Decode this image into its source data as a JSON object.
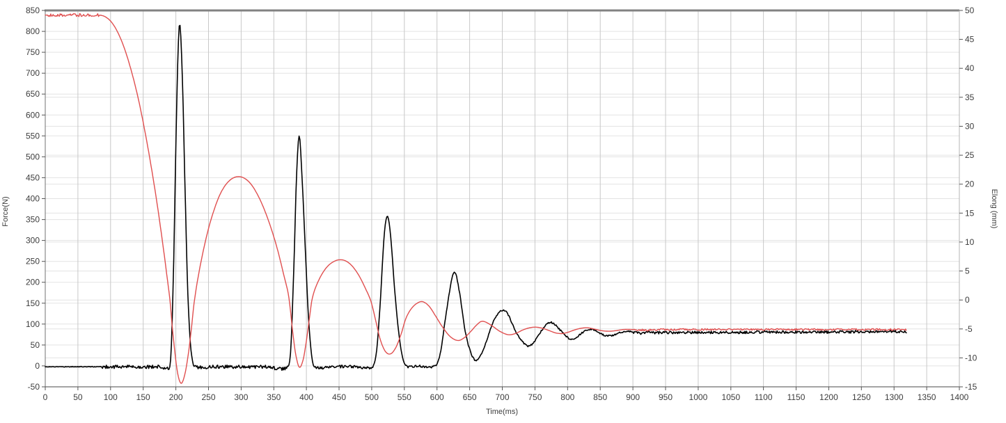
{
  "chart_data": {
    "type": "line",
    "title": "",
    "xlabel": "Time(ms)",
    "ylabel_left": "Force(N)",
    "ylabel_right": "Elong (mm)",
    "x_range": [
      0,
      1400
    ],
    "x_ticks": [
      0,
      50,
      100,
      150,
      200,
      250,
      300,
      350,
      400,
      450,
      500,
      550,
      600,
      650,
      700,
      750,
      800,
      850,
      900,
      950,
      1000,
      1050,
      1100,
      1150,
      1200,
      1250,
      1300,
      1350,
      1400
    ],
    "y_left_range": [
      -50,
      850
    ],
    "y_left_ticks": [
      -50,
      0,
      50,
      100,
      150,
      200,
      250,
      300,
      350,
      400,
      450,
      500,
      550,
      600,
      650,
      700,
      750,
      800,
      850
    ],
    "y_right_range": [
      -15,
      50
    ],
    "y_right_ticks": [
      -15,
      -10,
      -5,
      0,
      5,
      10,
      15,
      20,
      25,
      30,
      35,
      40,
      45,
      50
    ],
    "grid": true,
    "legend": "none",
    "colors": {
      "background": "#ffffff",
      "grid_h": "#e3e3e3",
      "grid_v": "#c8c8c8",
      "border_top": "#828282",
      "border_left": "#707070",
      "border_right": "#b5b5b5",
      "axis_line": "#4a4a4a",
      "tick": "#555555",
      "text": "#3c3c3c"
    },
    "series": [
      {
        "name": "Force",
        "axis": "left",
        "color": "#000000",
        "line_width": 1.6,
        "points": [
          [
            0,
            -2
          ],
          [
            40,
            -2
          ],
          [
            88,
            -2
          ],
          [
            130,
            -2
          ],
          [
            170,
            -2
          ],
          [
            186,
            -2
          ],
          [
            192,
            15
          ],
          [
            196,
            200
          ],
          [
            200,
            520
          ],
          [
            203,
            730
          ],
          [
            206,
            818
          ],
          [
            210,
            690
          ],
          [
            214,
            430
          ],
          [
            218,
            190
          ],
          [
            222,
            60
          ],
          [
            226,
            8
          ],
          [
            229,
            -2
          ],
          [
            260,
            -2
          ],
          [
            300,
            -2
          ],
          [
            340,
            -2
          ],
          [
            371,
            -2
          ],
          [
            376,
            40
          ],
          [
            381,
            250
          ],
          [
            385,
            460
          ],
          [
            389,
            550
          ],
          [
            393,
            460
          ],
          [
            398,
            290
          ],
          [
            403,
            120
          ],
          [
            408,
            25
          ],
          [
            412,
            -2
          ],
          [
            440,
            -2
          ],
          [
            470,
            -2
          ],
          [
            500,
            -2
          ],
          [
            507,
            30
          ],
          [
            513,
            150
          ],
          [
            519,
            310
          ],
          [
            524,
            358
          ],
          [
            529,
            310
          ],
          [
            535,
            185
          ],
          [
            541,
            85
          ],
          [
            547,
            22
          ],
          [
            553,
            0
          ],
          [
            570,
            0
          ],
          [
            597,
            0
          ],
          [
            605,
            30
          ],
          [
            614,
            125
          ],
          [
            623,
            210
          ],
          [
            628,
            223
          ],
          [
            635,
            170
          ],
          [
            643,
            85
          ],
          [
            651,
            35
          ],
          [
            659,
            13
          ],
          [
            667,
            25
          ],
          [
            676,
            60
          ],
          [
            686,
            105
          ],
          [
            695,
            128
          ],
          [
            701,
            133
          ],
          [
            708,
            125
          ],
          [
            716,
            98
          ],
          [
            724,
            72
          ],
          [
            732,
            56
          ],
          [
            738,
            48
          ],
          [
            744,
            50
          ],
          [
            751,
            62
          ],
          [
            759,
            82
          ],
          [
            767,
            98
          ],
          [
            774,
            104
          ],
          [
            781,
            98
          ],
          [
            789,
            85
          ],
          [
            797,
            72
          ],
          [
            803,
            64
          ],
          [
            806,
            63
          ],
          [
            812,
            66
          ],
          [
            819,
            75
          ],
          [
            827,
            84
          ],
          [
            836,
            88
          ],
          [
            843,
            84
          ],
          [
            850,
            78
          ],
          [
            857,
            73
          ],
          [
            864,
            72
          ],
          [
            871,
            74
          ],
          [
            879,
            79
          ],
          [
            887,
            82
          ],
          [
            893,
            83
          ],
          [
            900,
            81
          ],
          [
            910,
            78
          ],
          [
            920,
            80
          ],
          [
            935,
            79
          ],
          [
            960,
            80
          ],
          [
            1000,
            80
          ],
          [
            1050,
            80
          ],
          [
            1100,
            81
          ],
          [
            1150,
            81
          ],
          [
            1200,
            81
          ],
          [
            1260,
            82
          ],
          [
            1320,
            82
          ]
        ],
        "noise": [
          [
            0,
            86,
            0.8
          ],
          [
            86,
            190,
            4.2
          ],
          [
            229,
            371,
            4.2
          ],
          [
            412,
            502,
            3.5
          ],
          [
            553,
            599,
            2.8
          ],
          [
            599,
            900,
            1.8
          ],
          [
            900,
            1320,
            3.2
          ]
        ]
      },
      {
        "name": "Elong",
        "axis": "right",
        "color": "#e04f4f",
        "line_width": 1.4,
        "points": [
          [
            0,
            49.2
          ],
          [
            30,
            49.2
          ],
          [
            60,
            49.2
          ],
          [
            82,
            49.2
          ],
          [
            92,
            48.9
          ],
          [
            102,
            47.9
          ],
          [
            112,
            46.0
          ],
          [
            122,
            43.2
          ],
          [
            132,
            39.5
          ],
          [
            142,
            35.0
          ],
          [
            152,
            29.5
          ],
          [
            162,
            23.2
          ],
          [
            172,
            16.1
          ],
          [
            182,
            8.0
          ],
          [
            188,
            2.7
          ],
          [
            191,
            0
          ],
          [
            194,
            -4
          ],
          [
            199,
            -9.5
          ],
          [
            203,
            -12.8
          ],
          [
            208,
            -14.4
          ],
          [
            213,
            -13.2
          ],
          [
            218,
            -10.2
          ],
          [
            223,
            -5.8
          ],
          [
            228,
            -0.5
          ],
          [
            235,
            4.5
          ],
          [
            245,
            10
          ],
          [
            255,
            14.3
          ],
          [
            268,
            18.3
          ],
          [
            282,
            20.6
          ],
          [
            297,
            21.3
          ],
          [
            312,
            20.4
          ],
          [
            326,
            18.0
          ],
          [
            340,
            14.3
          ],
          [
            354,
            9.4
          ],
          [
            366,
            4.0
          ],
          [
            373,
            0.5
          ],
          [
            378,
            -4.5
          ],
          [
            383,
            -9
          ],
          [
            389,
            -11.6
          ],
          [
            395,
            -10.3
          ],
          [
            400,
            -7
          ],
          [
            405,
            -2.8
          ],
          [
            409,
            0.3
          ],
          [
            418,
            3.2
          ],
          [
            430,
            5.5
          ],
          [
            443,
            6.7
          ],
          [
            456,
            6.9
          ],
          [
            468,
            6.1
          ],
          [
            480,
            4.3
          ],
          [
            492,
            1.6
          ],
          [
            499,
            -0.3
          ],
          [
            506,
            -3.5
          ],
          [
            513,
            -6.8
          ],
          [
            521,
            -8.9
          ],
          [
            529,
            -9.3
          ],
          [
            537,
            -8.2
          ],
          [
            545,
            -5.9
          ],
          [
            552,
            -3.3
          ],
          [
            560,
            -1.6
          ],
          [
            569,
            -0.6
          ],
          [
            578,
            -0.3
          ],
          [
            588,
            -1.1
          ],
          [
            598,
            -2.8
          ],
          [
            608,
            -4.6
          ],
          [
            620,
            -6.3
          ],
          [
            632,
            -7.0
          ],
          [
            642,
            -6.5
          ],
          [
            652,
            -5.4
          ],
          [
            660,
            -4.4
          ],
          [
            668,
            -3.7
          ],
          [
            676,
            -3.9
          ],
          [
            686,
            -4.6
          ],
          [
            696,
            -5.4
          ],
          [
            709,
            -6.0
          ],
          [
            720,
            -5.8
          ],
          [
            731,
            -5.2
          ],
          [
            742,
            -4.8
          ],
          [
            752,
            -4.7
          ],
          [
            762,
            -4.9
          ],
          [
            772,
            -5.3
          ],
          [
            782,
            -5.7
          ],
          [
            792,
            -5.8
          ],
          [
            800,
            -5.6
          ],
          [
            810,
            -5.2
          ],
          [
            820,
            -4.9
          ],
          [
            830,
            -4.8
          ],
          [
            840,
            -5.0
          ],
          [
            852,
            -5.3
          ],
          [
            863,
            -5.4
          ],
          [
            874,
            -5.3
          ],
          [
            886,
            -5.1
          ],
          [
            898,
            -5.1
          ],
          [
            920,
            -5.2
          ],
          [
            950,
            -5.1
          ],
          [
            1000,
            -5.1
          ],
          [
            1060,
            -5.1
          ],
          [
            1120,
            -5.1
          ],
          [
            1180,
            -5.1
          ],
          [
            1250,
            -5.1
          ],
          [
            1320,
            -5.1
          ]
        ],
        "noise": [
          [
            4,
            84,
            0.25
          ],
          [
            900,
            1320,
            0.15
          ]
        ]
      }
    ]
  }
}
